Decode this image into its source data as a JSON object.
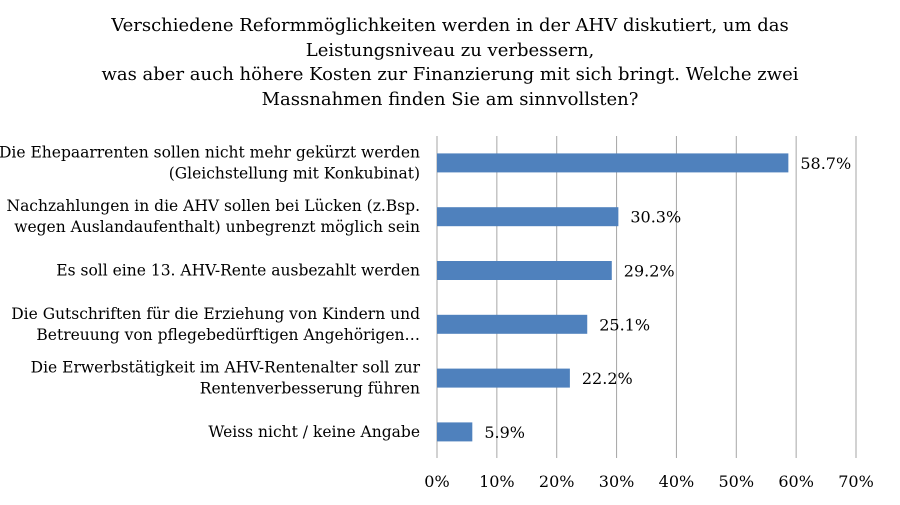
{
  "chart_data": {
    "type": "bar",
    "orientation": "horizontal",
    "title_lines": [
      "Verschiedene Reformmöglichkeiten werden in der AHV diskutiert, um das",
      "Leistungsniveau zu verbessern,",
      "was aber auch höhere Kosten zur Finanzierung mit sich bringt. Welche zwei",
      "Massnahmen finden Sie am sinnvollsten?"
    ],
    "categories": [
      [
        "Die Ehepaarrenten sollen nicht mehr gekürzt werden",
        "(Gleichstellung mit Konkubinat)"
      ],
      [
        "Nachzahlungen in die AHV sollen bei Lücken (z.Bsp.",
        "wegen Auslandaufenthalt) unbegrenzt möglich sein"
      ],
      [
        "Es soll eine 13. AHV-Rente ausbezahlt werden"
      ],
      [
        "Die Gutschriften für die Erziehung von Kindern und",
        "Betreuung von pflegebedürftigen Angehörigen…"
      ],
      [
        "Die Erwerbstätigkeit im AHV-Rentenalter soll zur",
        "Rentenverbesserung führen"
      ],
      [
        "Weiss nicht / keine Angabe"
      ]
    ],
    "values": [
      58.7,
      30.3,
      29.2,
      25.1,
      22.2,
      5.9
    ],
    "value_labels": [
      "58.7%",
      "30.3%",
      "29.2%",
      "25.1%",
      "22.2%",
      "5.9%"
    ],
    "xlim": [
      0,
      70
    ],
    "x_ticks": [
      0,
      10,
      20,
      30,
      40,
      50,
      60,
      70
    ],
    "x_tick_labels": [
      "0%",
      "10%",
      "20%",
      "30%",
      "40%",
      "50%",
      "60%",
      "70%"
    ],
    "xlabel": "",
    "ylabel": "",
    "grid": "vertical",
    "legend": "none",
    "colors": {
      "bar": "#4f81bd",
      "grid": "#a6a6a6",
      "text": "#000000"
    }
  }
}
